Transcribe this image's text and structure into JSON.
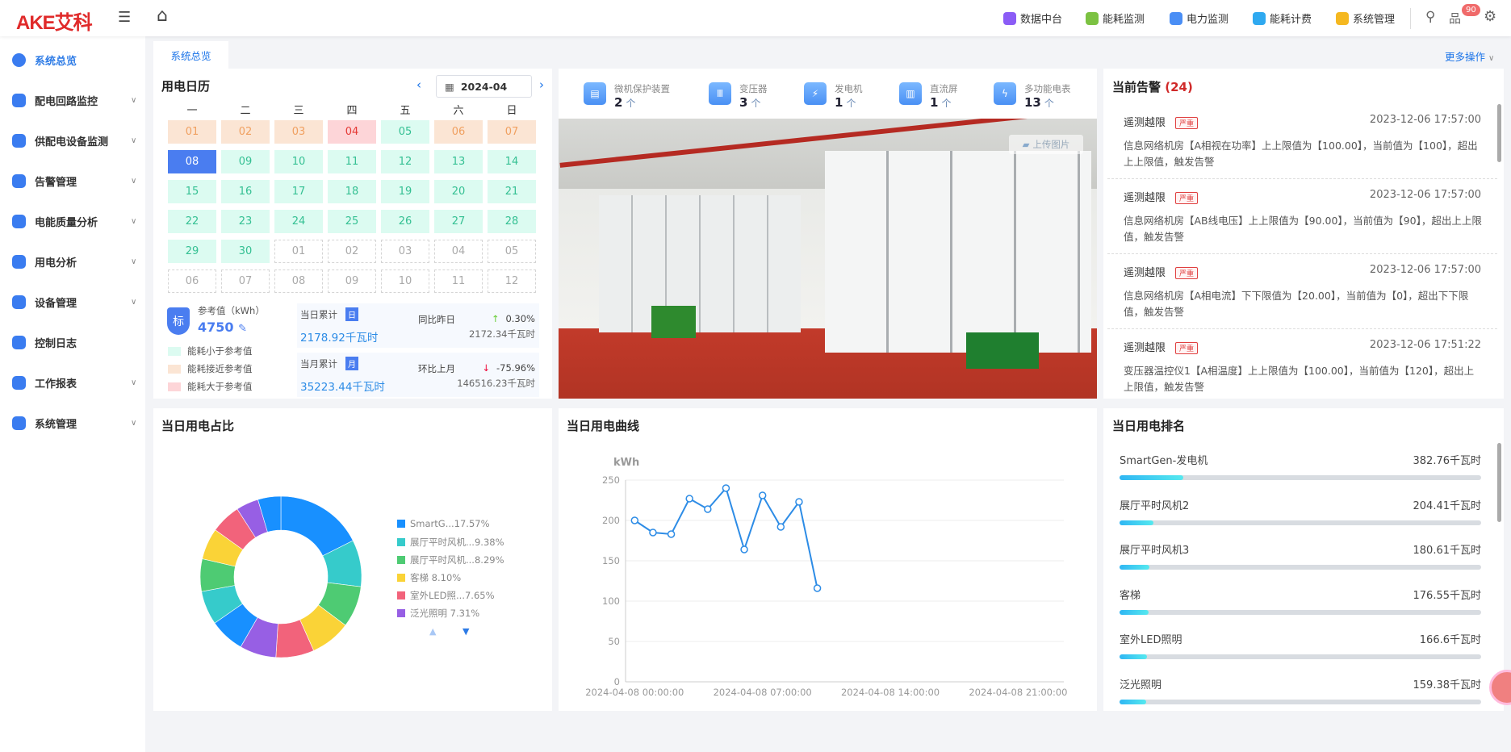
{
  "header": {
    "logo": "AKE艾科",
    "nav": [
      {
        "label": "数据中台",
        "color": "#8b5cf6"
      },
      {
        "label": "能耗监测",
        "color": "#7cc242"
      },
      {
        "label": "电力监测",
        "color": "#4a8ef5"
      },
      {
        "label": "能耗计费",
        "color": "#2fa9f0"
      },
      {
        "label": "系统管理",
        "color": "#f5b820"
      }
    ],
    "badge": "90"
  },
  "sidebar": {
    "items": [
      {
        "label": "系统总览",
        "active": true
      },
      {
        "label": "配电回路监控"
      },
      {
        "label": "供配电设备监测"
      },
      {
        "label": "告警管理"
      },
      {
        "label": "电能质量分析"
      },
      {
        "label": "用电分析"
      },
      {
        "label": "设备管理"
      },
      {
        "label": "控制日志"
      },
      {
        "label": "工作报表"
      },
      {
        "label": "系统管理"
      }
    ]
  },
  "tabs": {
    "active": "系统总览",
    "more": "更多操作"
  },
  "calendar": {
    "title": "用电日历",
    "month": "2024-04",
    "weekdays": [
      "一",
      "二",
      "三",
      "四",
      "五",
      "六",
      "日"
    ],
    "days": [
      [
        "01",
        "near"
      ],
      [
        "02",
        "near"
      ],
      [
        "03",
        "near"
      ],
      [
        "04",
        "over"
      ],
      [
        "05",
        "under"
      ],
      [
        "06",
        "near"
      ],
      [
        "07",
        "near"
      ],
      [
        "08",
        "selected"
      ],
      [
        "09",
        "under"
      ],
      [
        "10",
        "under"
      ],
      [
        "11",
        "under"
      ],
      [
        "12",
        "under"
      ],
      [
        "13",
        "under"
      ],
      [
        "14",
        "under"
      ],
      [
        "15",
        "under"
      ],
      [
        "16",
        "under"
      ],
      [
        "17",
        "under"
      ],
      [
        "18",
        "under"
      ],
      [
        "19",
        "under"
      ],
      [
        "20",
        "under"
      ],
      [
        "21",
        "under"
      ],
      [
        "22",
        "under"
      ],
      [
        "23",
        "under"
      ],
      [
        "24",
        "under"
      ],
      [
        "25",
        "under"
      ],
      [
        "26",
        "under"
      ],
      [
        "27",
        "under"
      ],
      [
        "28",
        "under"
      ],
      [
        "29",
        "under"
      ],
      [
        "30",
        "under"
      ],
      [
        "01",
        "next"
      ],
      [
        "02",
        "next"
      ],
      [
        "03",
        "next"
      ],
      [
        "04",
        "next"
      ],
      [
        "05",
        "next"
      ],
      [
        "06",
        "next"
      ],
      [
        "07",
        "next"
      ],
      [
        "08",
        "next"
      ],
      [
        "09",
        "next"
      ],
      [
        "10",
        "next"
      ],
      [
        "11",
        "next"
      ],
      [
        "12",
        "next"
      ]
    ],
    "ref_label": "参考值（kWh）",
    "ref_value": "4750",
    "badge": "标",
    "legend": [
      {
        "label": "能耗小于参考值",
        "color": "#dcfbf1"
      },
      {
        "label": "能耗接近参考值",
        "color": "#fbe5d4"
      },
      {
        "label": "能耗大于参考值",
        "color": "#fdd5d8"
      }
    ],
    "day": {
      "label": "当日累计",
      "tag": "日",
      "value": "2178.92千瓦时",
      "cmp_label": "同比昨日",
      "cmp_pct": "0.30%",
      "cmp_value": "2172.34千瓦时"
    },
    "month_stat": {
      "label": "当月累计",
      "tag": "月",
      "value": "35223.44千瓦时",
      "cmp_label": "环比上月",
      "cmp_pct": "-75.96%",
      "cmp_value": "146516.23千瓦时"
    }
  },
  "devices": [
    {
      "label": "微机保护装置",
      "count": "2",
      "unit": "个"
    },
    {
      "label": "变压器",
      "count": "3",
      "unit": "个"
    },
    {
      "label": "发电机",
      "count": "1",
      "unit": "个"
    },
    {
      "label": "直流屏",
      "count": "1",
      "unit": "个"
    },
    {
      "label": "多功能电表",
      "count": "13",
      "unit": "个"
    }
  ],
  "upload_label": "上传图片",
  "alarms": {
    "title": "当前告警",
    "count": "(24)",
    "items": [
      {
        "type": "遥测越限",
        "level": "严重",
        "time": "2023-12-06 17:57:00",
        "desc": "信息网络机房【A相视在功率】上上限值为【100.00】，当前值为【100】，超出上上限值，触发告警"
      },
      {
        "type": "遥测越限",
        "level": "严重",
        "time": "2023-12-06 17:57:00",
        "desc": "信息网络机房【AB线电压】上上限值为【90.00】，当前值为【90】，超出上上限值，触发告警"
      },
      {
        "type": "遥测越限",
        "level": "严重",
        "time": "2023-12-06 17:57:00",
        "desc": "信息网络机房【A相电流】下下限值为【20.00】，当前值为【0】，超出下下限值，触发告警"
      },
      {
        "type": "遥测越限",
        "level": "严重",
        "time": "2023-12-06 17:51:22",
        "desc": "变压器温控仪1【A相温度】上上限值为【100.00】，当前值为【120】，超出上上限值，触发告警"
      }
    ]
  },
  "chart_data": [
    {
      "type": "pie",
      "title": "当日用电占比",
      "donut": true,
      "legend": [
        {
          "label": "SmartG...17.57%",
          "color": "#1890ff"
        },
        {
          "label": "展厅平时风机...9.38%",
          "color": "#36cbcb"
        },
        {
          "label": "展厅平时风机...8.29%",
          "color": "#4ecb73"
        },
        {
          "label": "客梯  8.10%",
          "color": "#fad337"
        },
        {
          "label": "室外LED照...7.65%",
          "color": "#f2637b"
        },
        {
          "label": "泛光照明  7.31%",
          "color": "#975fe4"
        }
      ],
      "values": [
        17.57,
        9.38,
        8.29,
        8.1,
        7.65,
        7.31,
        7.0,
        6.8,
        6.5,
        6.3,
        6.0,
        4.5,
        4.6
      ],
      "colors": [
        "#1890ff",
        "#36cbcb",
        "#4ecb73",
        "#fad337",
        "#f2637b",
        "#975fe4",
        "#1890ff",
        "#36cbcb",
        "#4ecb73",
        "#fad337",
        "#f2637b",
        "#975fe4",
        "#1890ff"
      ]
    },
    {
      "type": "line",
      "title": "当日用电曲线",
      "ylabel": "kWh",
      "ylim": [
        0,
        250
      ],
      "yticks": [
        0,
        50,
        100,
        150,
        200,
        250
      ],
      "xlabels": [
        "2024-04-08 00:00:00",
        "2024-04-08 07:00:00",
        "2024-04-08 14:00:00",
        "2024-04-08 21:00:00"
      ],
      "x_hours": [
        0,
        1,
        2,
        3,
        4,
        5,
        6,
        7,
        8,
        9,
        10
      ],
      "values": [
        200,
        185,
        183,
        227,
        214,
        240,
        164,
        231,
        192,
        223,
        116
      ],
      "color": "#2d8ce6"
    }
  ],
  "ranking": {
    "title": "当日用电排名",
    "items": [
      {
        "name": "SmartGen-发电机",
        "value": "382.76千瓦时",
        "pct": 17.57
      },
      {
        "name": "展厅平时风机2",
        "value": "204.41千瓦时",
        "pct": 9.38
      },
      {
        "name": "展厅平时风机3",
        "value": "180.61千瓦时",
        "pct": 8.29
      },
      {
        "name": "客梯",
        "value": "176.55千瓦时",
        "pct": 8.1
      },
      {
        "name": "室外LED照明",
        "value": "166.6千瓦时",
        "pct": 7.65
      },
      {
        "name": "泛光照明",
        "value": "159.38千瓦时",
        "pct": 7.31
      }
    ]
  }
}
